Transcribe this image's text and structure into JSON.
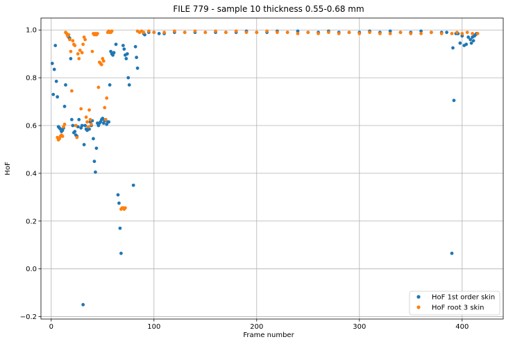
{
  "chart_data": {
    "type": "scatter",
    "title": "FILE 779 - sample 10 thickness 0.55-0.68 mm",
    "xlabel": "Frame number",
    "ylabel": "HoF",
    "xlim": [
      -10,
      440
    ],
    "ylim": [
      -0.21,
      1.05
    ],
    "xticks": [
      0,
      100,
      200,
      300,
      400
    ],
    "yticks": [
      -0.2,
      0.0,
      0.2,
      0.4,
      0.6,
      0.8,
      1.0
    ],
    "xtick_labels": [
      "0",
      "100",
      "200",
      "300",
      "400"
    ],
    "ytick_labels": [
      "−0.2",
      "0.0",
      "0.2",
      "0.4",
      "0.6",
      "0.8",
      "1.0"
    ],
    "grid": true,
    "legend_position": "lower-right",
    "series": [
      {
        "name": "HoF 1st order skin",
        "color": "#1f77b4",
        "points": [
          [
            1,
            0.86
          ],
          [
            2,
            0.73
          ],
          [
            3,
            0.835
          ],
          [
            4,
            0.935
          ],
          [
            5,
            0.785
          ],
          [
            6,
            0.72
          ],
          [
            7,
            0.595
          ],
          [
            8,
            0.59
          ],
          [
            9,
            0.585
          ],
          [
            10,
            0.575
          ],
          [
            11,
            0.58
          ],
          [
            12,
            0.59
          ],
          [
            13,
            0.68
          ],
          [
            14,
            0.77
          ],
          [
            16,
            0.98
          ],
          [
            17,
            0.97
          ],
          [
            18,
            0.965
          ],
          [
            19,
            0.88
          ],
          [
            20,
            0.625
          ],
          [
            21,
            0.6
          ],
          [
            22,
            0.57
          ],
          [
            23,
            0.575
          ],
          [
            24,
            0.56
          ],
          [
            25,
            0.555
          ],
          [
            26,
            0.595
          ],
          [
            27,
            0.625
          ],
          [
            29,
            0.59
          ],
          [
            30,
            0.6
          ],
          [
            31,
            -0.15
          ],
          [
            32,
            0.52
          ],
          [
            33,
            0.6
          ],
          [
            34,
            0.585
          ],
          [
            35,
            0.58
          ],
          [
            36,
            0.59
          ],
          [
            37,
            0.585
          ],
          [
            38,
            0.615
          ],
          [
            39,
            0.6
          ],
          [
            40,
            0.62
          ],
          [
            41,
            0.545
          ],
          [
            42,
            0.45
          ],
          [
            43,
            0.405
          ],
          [
            44,
            0.505
          ],
          [
            45,
            0.61
          ],
          [
            46,
            0.6
          ],
          [
            47,
            0.61
          ],
          [
            48,
            0.615
          ],
          [
            49,
            0.625
          ],
          [
            50,
            0.63
          ],
          [
            51,
            0.61
          ],
          [
            52,
            0.62
          ],
          [
            53,
            0.625
          ],
          [
            54,
            0.605
          ],
          [
            55,
            0.615
          ],
          [
            56,
            0.615
          ],
          [
            57,
            0.77
          ],
          [
            58,
            0.91
          ],
          [
            59,
            0.9
          ],
          [
            60,
            0.895
          ],
          [
            61,
            0.905
          ],
          [
            63,
            0.94
          ],
          [
            65,
            0.31
          ],
          [
            66,
            0.275
          ],
          [
            67,
            0.17
          ],
          [
            68,
            0.065
          ],
          [
            70,
            0.935
          ],
          [
            71,
            0.92
          ],
          [
            72,
            0.895
          ],
          [
            73,
            0.88
          ],
          [
            74,
            0.9
          ],
          [
            75,
            0.8
          ],
          [
            76,
            0.77
          ],
          [
            80,
            0.35
          ],
          [
            82,
            0.93
          ],
          [
            83,
            0.885
          ],
          [
            84,
            0.84
          ],
          [
            90,
            0.985
          ],
          [
            91,
            0.98
          ],
          [
            95,
            0.99
          ],
          [
            100,
            0.99
          ],
          [
            105,
            0.985
          ],
          [
            110,
            0.985
          ],
          [
            120,
            0.99
          ],
          [
            130,
            0.99
          ],
          [
            140,
            0.99
          ],
          [
            150,
            0.99
          ],
          [
            160,
            0.99
          ],
          [
            170,
            0.99
          ],
          [
            180,
            0.99
          ],
          [
            190,
            0.995
          ],
          [
            200,
            0.99
          ],
          [
            210,
            0.99
          ],
          [
            220,
            0.995
          ],
          [
            230,
            0.99
          ],
          [
            240,
            0.995
          ],
          [
            250,
            0.99
          ],
          [
            260,
            0.99
          ],
          [
            270,
            0.995
          ],
          [
            280,
            0.99
          ],
          [
            290,
            0.99
          ],
          [
            300,
            0.99
          ],
          [
            310,
            0.995
          ],
          [
            320,
            0.99
          ],
          [
            330,
            0.995
          ],
          [
            340,
            0.99
          ],
          [
            350,
            0.99
          ],
          [
            360,
            0.995
          ],
          [
            370,
            0.99
          ],
          [
            380,
            0.99
          ],
          [
            385,
            0.99
          ],
          [
            390,
            0.065
          ],
          [
            391,
            0.925
          ],
          [
            392,
            0.705
          ],
          [
            394,
            0.985
          ],
          [
            396,
            0.985
          ],
          [
            398,
            0.945
          ],
          [
            400,
            0.975
          ],
          [
            402,
            0.935
          ],
          [
            404,
            0.94
          ],
          [
            406,
            0.97
          ],
          [
            408,
            0.96
          ],
          [
            409,
            0.945
          ],
          [
            410,
            0.97
          ],
          [
            411,
            0.955
          ],
          [
            412,
            0.975
          ],
          [
            413,
            0.98
          ],
          [
            414,
            0.985
          ],
          [
            415,
            0.985
          ]
        ]
      },
      {
        "name": "HoF root 3 skin",
        "color": "#ff7f0e",
        "points": [
          [
            6,
            0.55
          ],
          [
            7,
            0.54
          ],
          [
            8,
            0.545
          ],
          [
            9,
            0.555
          ],
          [
            10,
            0.56
          ],
          [
            11,
            0.555
          ],
          [
            12,
            0.595
          ],
          [
            13,
            0.605
          ],
          [
            14,
            0.99
          ],
          [
            15,
            0.985
          ],
          [
            16,
            0.975
          ],
          [
            17,
            0.98
          ],
          [
            18,
            0.96
          ],
          [
            19,
            0.91
          ],
          [
            20,
            0.745
          ],
          [
            21,
            0.955
          ],
          [
            22,
            0.94
          ],
          [
            23,
            0.935
          ],
          [
            24,
            0.6
          ],
          [
            25,
            0.55
          ],
          [
            26,
            0.9
          ],
          [
            27,
            0.88
          ],
          [
            28,
            0.915
          ],
          [
            29,
            0.67
          ],
          [
            30,
            0.905
          ],
          [
            31,
            0.94
          ],
          [
            32,
            0.97
          ],
          [
            33,
            0.96
          ],
          [
            34,
            0.635
          ],
          [
            35,
            0.615
          ],
          [
            36,
            0.595
          ],
          [
            37,
            0.665
          ],
          [
            38,
            0.625
          ],
          [
            39,
            0.605
          ],
          [
            40,
            0.91
          ],
          [
            41,
            0.985
          ],
          [
            42,
            0.98
          ],
          [
            43,
            0.985
          ],
          [
            44,
            0.98
          ],
          [
            45,
            0.985
          ],
          [
            46,
            0.76
          ],
          [
            47,
            0.865
          ],
          [
            48,
            0.86
          ],
          [
            49,
            0.855
          ],
          [
            50,
            0.88
          ],
          [
            51,
            0.87
          ],
          [
            52,
            0.675
          ],
          [
            53,
            0.625
          ],
          [
            54,
            0.715
          ],
          [
            55,
            0.99
          ],
          [
            56,
            0.995
          ],
          [
            57,
            0.99
          ],
          [
            58,
            0.99
          ],
          [
            59,
            0.995
          ],
          [
            68,
            0.25
          ],
          [
            69,
            0.255
          ],
          [
            70,
            0.255
          ],
          [
            71,
            0.25
          ],
          [
            72,
            0.255
          ],
          [
            84,
            0.995
          ],
          [
            86,
            0.99
          ],
          [
            88,
            0.995
          ],
          [
            90,
            0.99
          ],
          [
            95,
            0.995
          ],
          [
            100,
            0.99
          ],
          [
            110,
            0.99
          ],
          [
            120,
            0.995
          ],
          [
            130,
            0.99
          ],
          [
            140,
            0.995
          ],
          [
            150,
            0.99
          ],
          [
            160,
            0.995
          ],
          [
            170,
            0.99
          ],
          [
            180,
            0.995
          ],
          [
            190,
            0.99
          ],
          [
            200,
            0.99
          ],
          [
            210,
            0.995
          ],
          [
            220,
            0.99
          ],
          [
            230,
            0.99
          ],
          [
            240,
            0.985
          ],
          [
            250,
            0.99
          ],
          [
            260,
            0.985
          ],
          [
            270,
            0.99
          ],
          [
            280,
            0.985
          ],
          [
            290,
            0.99
          ],
          [
            300,
            0.985
          ],
          [
            310,
            0.99
          ],
          [
            320,
            0.985
          ],
          [
            330,
            0.985
          ],
          [
            340,
            0.99
          ],
          [
            350,
            0.985
          ],
          [
            360,
            0.985
          ],
          [
            370,
            0.99
          ],
          [
            380,
            0.985
          ],
          [
            390,
            0.985
          ],
          [
            395,
            0.99
          ],
          [
            400,
            0.985
          ],
          [
            405,
            0.99
          ],
          [
            410,
            0.985
          ],
          [
            415,
            0.985
          ]
        ]
      }
    ]
  }
}
